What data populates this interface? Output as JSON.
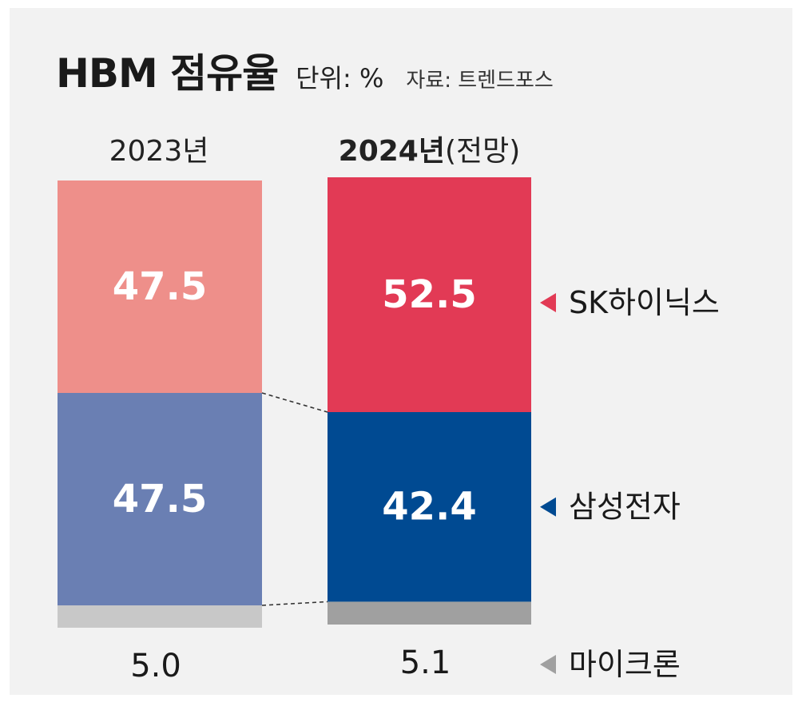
{
  "header": {
    "title": "HBM 점유율",
    "unit": "단위: %",
    "source": "자료: 트렌드포스"
  },
  "years": {
    "y2023": "2023년",
    "y2024_year": "2024년",
    "y2024_note": "(전망)"
  },
  "chart_data": {
    "type": "bar",
    "stacked": true,
    "categories": [
      "2023년",
      "2024년(전망)"
    ],
    "series": [
      {
        "name": "SK하이닉스",
        "values": [
          47.5,
          52.5
        ]
      },
      {
        "name": "삼성전자",
        "values": [
          47.5,
          42.4
        ]
      },
      {
        "name": "마이크론",
        "values": [
          5.0,
          5.1
        ]
      }
    ],
    "value_labels": [
      [
        "47.5",
        "47.5",
        "5.0"
      ],
      [
        "52.5",
        "42.4",
        "5.1"
      ]
    ],
    "colors": {
      "2023": [
        "#ee8f8a",
        "#6a7fb3",
        "#c8c8c8"
      ],
      "2024": [
        "#e23a55",
        "#004a92",
        "#a0a0a0"
      ]
    },
    "legend_placement": "right",
    "ylim": [
      0,
      100
    ]
  }
}
